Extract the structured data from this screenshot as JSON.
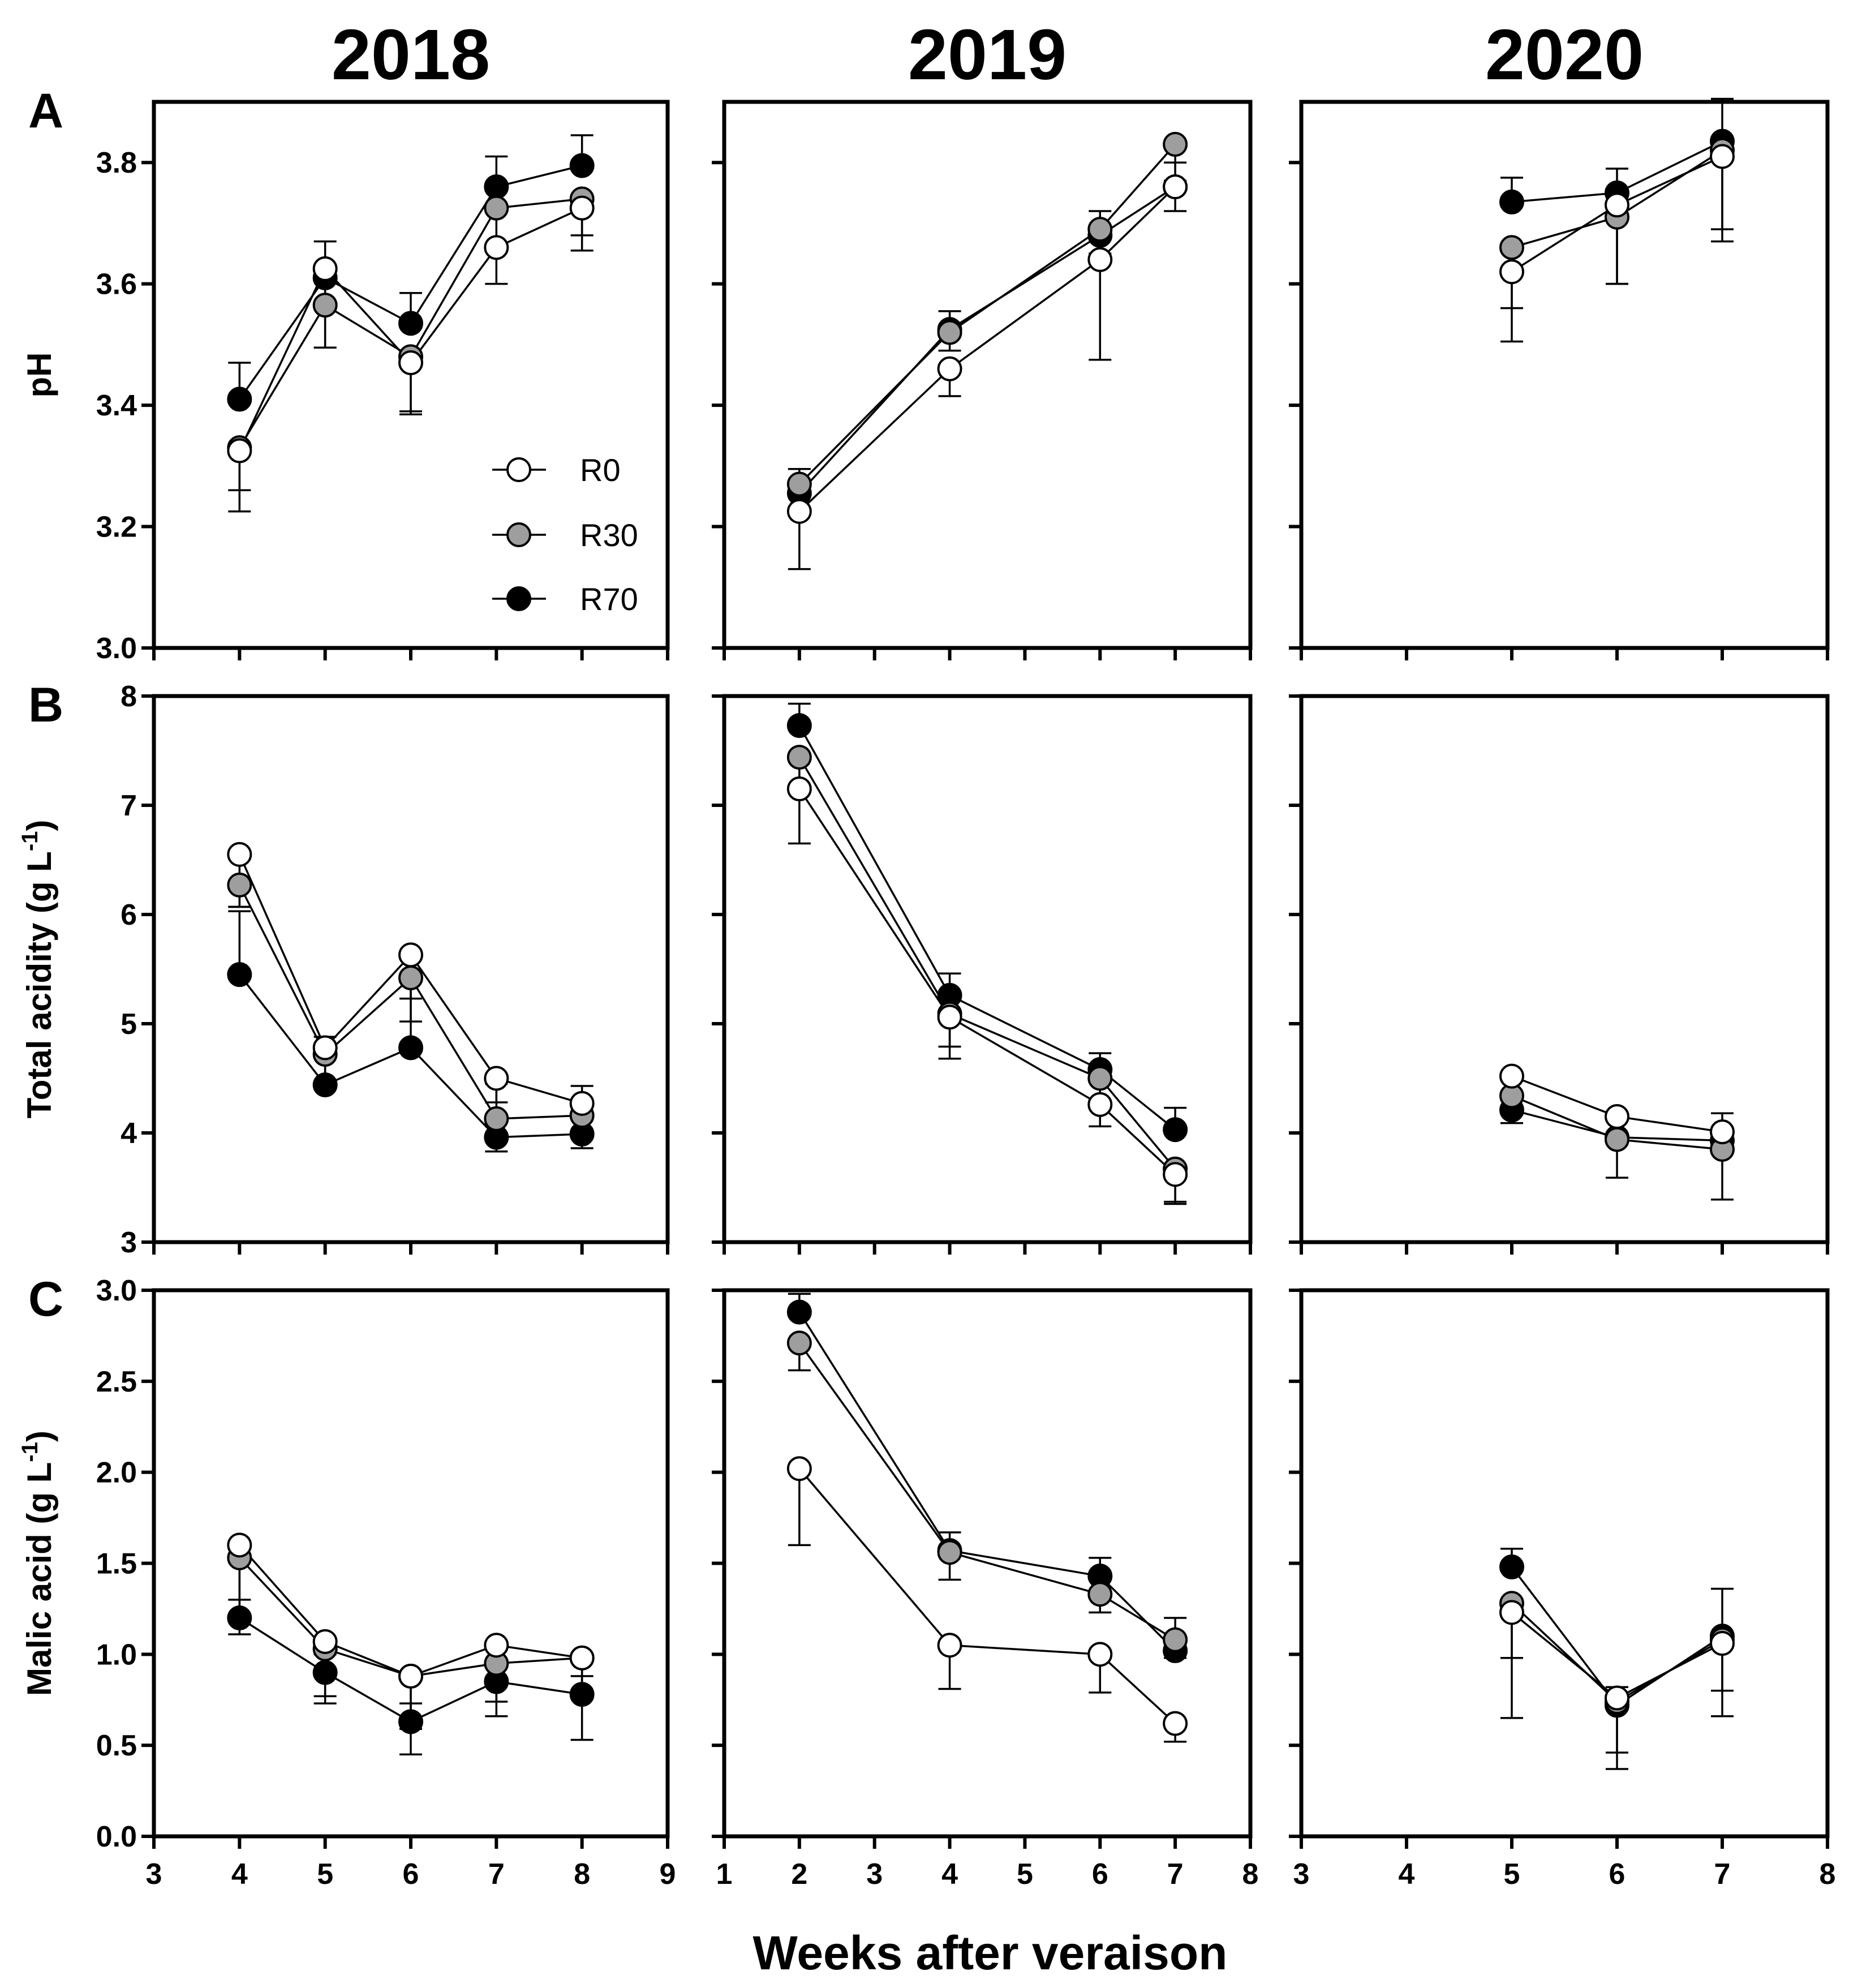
{
  "chart_data": {
    "type": "line",
    "figure_xlabel": "Weeks after veraison",
    "column_titles": [
      "2018",
      "2019",
      "2020"
    ],
    "series_styles": [
      {
        "name": "R0",
        "color": "#ffffff"
      },
      {
        "name": "R30",
        "color": "#9e9e9e"
      },
      {
        "name": "R70",
        "color": "#000000"
      }
    ],
    "legend": {
      "entries": [
        "R0",
        "R30",
        "R70"
      ],
      "location": "panel A 2018, lower-right"
    },
    "rows": [
      {
        "letter": "A",
        "ylabel": "pH",
        "ylim": [
          3.0,
          3.9
        ],
        "yticks": [
          3.0,
          3.2,
          3.4,
          3.6,
          3.8
        ],
        "ytick_labels": [
          "3.0",
          "3.2",
          "3.4",
          "3.6",
          "3.8"
        ]
      },
      {
        "letter": "B",
        "ylabel": "Total acidity (g L",
        "ylabel_sup": "-1",
        "ylabel_end": ")",
        "ylim": [
          3,
          8
        ],
        "yticks": [
          3,
          4,
          5,
          6,
          7,
          8
        ],
        "ytick_labels": [
          "3",
          "4",
          "5",
          "6",
          "7",
          "8"
        ]
      },
      {
        "letter": "C",
        "ylabel": "Malic acid (g L",
        "ylabel_sup": "-1",
        "ylabel_end": ")",
        "ylim": [
          0,
          3.0
        ],
        "yticks": [
          0,
          0.5,
          1.0,
          1.5,
          2.0,
          2.5,
          3.0
        ],
        "ytick_labels": [
          "0.0",
          "0.5",
          "1.0",
          "1.5",
          "2.0",
          "2.5",
          "3.0"
        ]
      }
    ],
    "columns": [
      {
        "year": "2018",
        "xlim": [
          3,
          9
        ],
        "xticks": [
          3,
          4,
          5,
          6,
          7,
          8,
          9
        ],
        "xtick_labels": [
          "3",
          "4",
          "5",
          "6",
          "7",
          "8",
          "9"
        ]
      },
      {
        "year": "2019",
        "xlim": [
          1,
          8
        ],
        "xticks": [
          1,
          2,
          3,
          4,
          5,
          6,
          7,
          8
        ],
        "xtick_labels": [
          "1",
          "2",
          "3",
          "4",
          "5",
          "6",
          "7",
          "8"
        ]
      },
      {
        "year": "2020",
        "xlim": [
          3,
          8
        ],
        "xticks": [
          3,
          4,
          5,
          6,
          7,
          8
        ],
        "xtick_labels": [
          "3",
          "4",
          "5",
          "6",
          "7",
          "8"
        ]
      }
    ],
    "panels": [
      {
        "row": 0,
        "col": 0,
        "x": [
          4,
          5,
          6,
          7,
          8
        ],
        "series": [
          {
            "name": "R0",
            "values": [
              3.325,
              3.625,
              3.47,
              3.66,
              3.725
            ],
            "err": [
              0.1,
              0.13,
              0.085,
              0.06,
              0.07
            ]
          },
          {
            "name": "R30",
            "values": [
              3.33,
              3.565,
              3.48,
              3.725,
              3.74
            ],
            "err": [
              0.07,
              0.07,
              0.09,
              0.06,
              0.06
            ]
          },
          {
            "name": "R70",
            "values": [
              3.41,
              3.61,
              3.535,
              3.76,
              3.795
            ],
            "err": [
              0.06,
              0.06,
              0.05,
              0.05,
              0.05
            ]
          }
        ]
      },
      {
        "row": 0,
        "col": 1,
        "x": [
          2,
          4,
          6,
          7
        ],
        "series": [
          {
            "name": "R0",
            "values": [
              3.225,
              3.46,
              3.64,
              3.76
            ],
            "err": [
              0.095,
              0.045,
              0.165,
              0.04
            ]
          },
          {
            "name": "R30",
            "values": [
              3.27,
              3.52,
              3.69,
              3.83
            ],
            "err": [
              0.04,
              0.03,
              0.04,
              0.06
            ]
          },
          {
            "name": "R70",
            "values": [
              3.255,
              3.525,
              3.68,
              3.76
            ],
            "err": [
              0.04,
              0.03,
              0.04,
              0.04
            ]
          }
        ]
      },
      {
        "row": 0,
        "col": 2,
        "x": [
          5,
          6,
          7
        ],
        "series": [
          {
            "name": "R0",
            "values": [
              3.62,
              3.73,
              3.81
            ],
            "err": [
              0.115,
              0.13,
              0.14
            ]
          },
          {
            "name": "R30",
            "values": [
              3.66,
              3.71,
              3.82
            ],
            "err": [
              0.1,
              0.11,
              0.13
            ]
          },
          {
            "name": "R70",
            "values": [
              3.735,
              3.75,
              3.835
            ],
            "err": [
              0.04,
              0.04,
              0.07
            ]
          }
        ]
      },
      {
        "row": 1,
        "col": 0,
        "x": [
          4,
          5,
          6,
          7,
          8
        ],
        "series": [
          {
            "name": "R0",
            "values": [
              6.55,
              4.78,
              5.63,
              4.5,
              4.27
            ],
            "err": [
              0.48,
              0.35,
              0.4,
              0.22,
              0.28
            ]
          },
          {
            "name": "R30",
            "values": [
              6.27,
              4.72,
              5.42,
              4.13,
              4.16
            ],
            "err": [
              0.2,
              0.3,
              0.4,
              0.3,
              0.3
            ]
          },
          {
            "name": "R70",
            "values": [
              5.45,
              4.44,
              4.78,
              3.96,
              3.99
            ],
            "err": [
              0.58,
              0.44,
              0.65,
              0.49,
              0.44
            ]
          }
        ]
      },
      {
        "row": 1,
        "col": 1,
        "x": [
          2,
          4,
          6,
          7
        ],
        "series": [
          {
            "name": "R0",
            "values": [
              7.15,
              5.06,
              4.26,
              3.62
            ],
            "err": [
              0.5,
              0.38,
              0.2,
              0.27
            ]
          },
          {
            "name": "R30",
            "values": [
              7.44,
              5.09,
              4.5,
              3.67
            ],
            "err": [
              0.3,
              0.3,
              0.2,
              0.3
            ]
          },
          {
            "name": "R70",
            "values": [
              7.73,
              5.26,
              4.58,
              4.03
            ],
            "err": [
              0.2,
              0.2,
              0.15,
              0.2
            ]
          }
        ]
      },
      {
        "row": 1,
        "col": 2,
        "x": [
          5,
          6,
          7
        ],
        "series": [
          {
            "name": "R0",
            "values": [
              4.52,
              4.15,
              4.01
            ],
            "err": [
              0.2,
              0.15,
              0.2
            ]
          },
          {
            "name": "R30",
            "values": [
              4.34,
              3.94,
              3.85
            ],
            "err": [
              0.25,
              0.35,
              0.46
            ]
          },
          {
            "name": "R70",
            "values": [
              4.21,
              3.96,
              3.93
            ],
            "err": [
              0.28,
              0.2,
              0.25
            ]
          }
        ]
      },
      {
        "row": 2,
        "col": 0,
        "x": [
          4,
          5,
          6,
          7,
          8
        ],
        "series": [
          {
            "name": "R0",
            "values": [
              1.6,
              1.07,
              0.88,
              1.05,
              0.98
            ],
            "err": [
              0.38,
              0.3,
              0.43,
              0.31,
              0.45
            ]
          },
          {
            "name": "R30",
            "values": [
              1.53,
              1.03,
              0.88,
              0.95,
              0.98
            ],
            "err": [
              0.42,
              0.3,
              0.29,
              0.29,
              0.2
            ]
          },
          {
            "name": "R70",
            "values": [
              1.2,
              0.9,
              0.63,
              0.85,
              0.78
            ],
            "err": [
              0.1,
              0.1,
              0.1,
              0.1,
              0.1
            ]
          }
        ]
      },
      {
        "row": 2,
        "col": 1,
        "x": [
          2,
          4,
          6,
          7
        ],
        "series": [
          {
            "name": "R0",
            "values": [
              2.02,
              1.05,
              1.0,
              0.62
            ],
            "err": [
              0.42,
              0.24,
              0.21,
              0.1
            ]
          },
          {
            "name": "R30",
            "values": [
              2.71,
              1.56,
              1.33,
              1.08
            ],
            "err": [
              0.15,
              0.15,
              0.1,
              0.1
            ]
          },
          {
            "name": "R70",
            "values": [
              2.88,
              1.57,
              1.43,
              1.02
            ],
            "err": [
              0.1,
              0.1,
              0.1,
              0.18
            ]
          }
        ]
      },
      {
        "row": 2,
        "col": 2,
        "x": [
          5,
          6,
          7
        ],
        "series": [
          {
            "name": "R0",
            "values": [
              1.23,
              0.76,
              1.06
            ],
            "err": [
              0.58,
              0.39,
              0.4
            ]
          },
          {
            "name": "R30",
            "values": [
              1.28,
              0.74,
              1.08
            ],
            "err": [
              0.3,
              0.28,
              0.28
            ]
          },
          {
            "name": "R70",
            "values": [
              1.48,
              0.72,
              1.1
            ],
            "err": [
              0.1,
              0.1,
              0.26
            ]
          }
        ]
      }
    ]
  }
}
